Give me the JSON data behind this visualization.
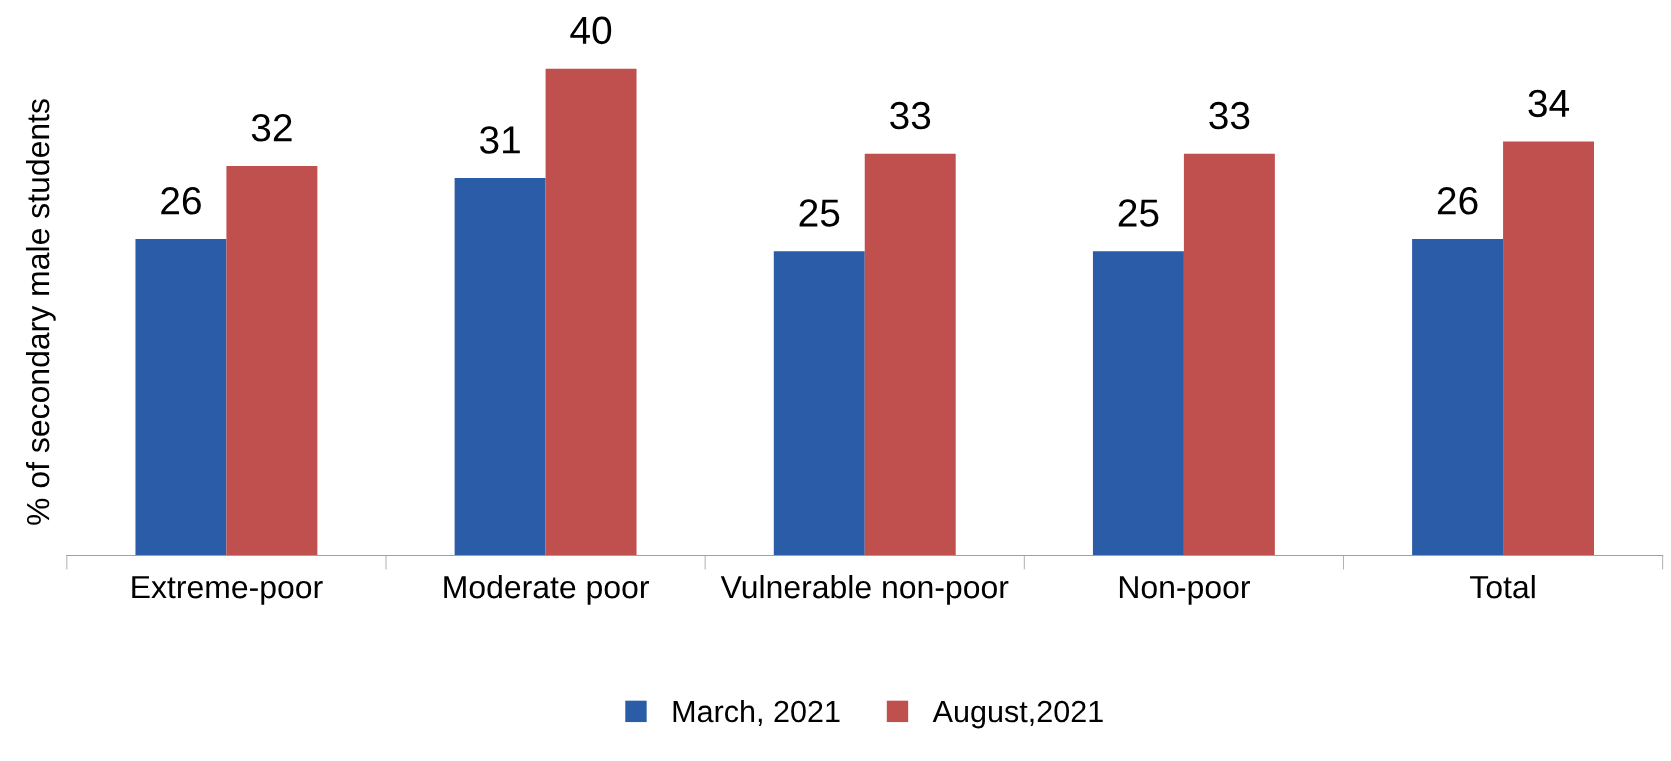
{
  "chart_data": {
    "type": "bar",
    "categories": [
      "Extreme-poor",
      "Moderate poor",
      "Vulnerable non-poor",
      "Non-poor",
      "Total"
    ],
    "series": [
      {
        "name": "March, 2021",
        "color": "#2b5ca8",
        "values": [
          26,
          31,
          25,
          25,
          26
        ]
      },
      {
        "name": "August,2021",
        "color": "#c0504d",
        "values": [
          32,
          40,
          33,
          33,
          34
        ]
      }
    ],
    "ylabel": "% of secondary male students",
    "tick_labels": "x",
    "data_labels": true,
    "grid": false,
    "legend": "bottom"
  }
}
